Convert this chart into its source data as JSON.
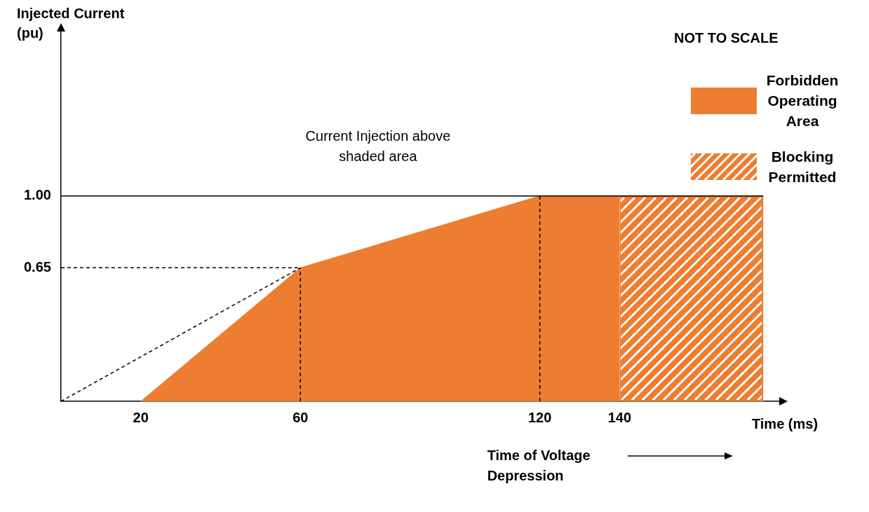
{
  "chart_data": {
    "type": "area",
    "xlabel": "Time (ms)",
    "ylabel": "Injected Current (pu)",
    "xlim": [
      0,
      180
    ],
    "xticks": [
      20,
      60,
      120,
      140
    ],
    "ylim": [
      0,
      1.8
    ],
    "yticks": [
      {
        "value": 0.65,
        "label": "0.65"
      },
      {
        "value": 1,
        "label": "1.00"
      }
    ],
    "grid": false,
    "legend": "top right",
    "marker": "none",
    "series": [
      {
        "name": "Forbidden Operating Area",
        "color": "#ed7d31",
        "x": [
          20,
          60,
          120,
          140
        ],
        "values": [
          0,
          0.65,
          1,
          1
        ]
      },
      {
        "type": "line",
        "line_style": "dashed",
        "color": "#000000",
        "x": [
          0,
          60
        ],
        "values": [
          0,
          0.65
        ]
      },
      {
        "type": "line",
        "line_style": "dashed",
        "color": "#000000",
        "x": [
          0,
          60
        ],
        "values": [
          0.65,
          0.65
        ]
      },
      {
        "type": "line",
        "line_style": "dashed",
        "color": "#000000",
        "x": [
          60,
          60
        ],
        "values": [
          0,
          0.65
        ]
      },
      {
        "type": "line",
        "line_style": "dashed",
        "color": "#000000",
        "x": [
          120,
          120
        ],
        "values": [
          0,
          1
        ]
      },
      {
        "type": "line",
        "line_style": "solid",
        "color": "#000000",
        "x": [
          0,
          176
        ],
        "values": [
          1,
          1
        ]
      }
    ],
    "bands": [
      {
        "axis": "x",
        "from": 140,
        "to": 176,
        "label": "Blocking Permitted",
        "color": "#ed7d31"
      }
    ],
    "annotations": [
      "Current Injection above shaded area",
      "NOT TO SCALE",
      "Time of Voltage Depression"
    ]
  }
}
